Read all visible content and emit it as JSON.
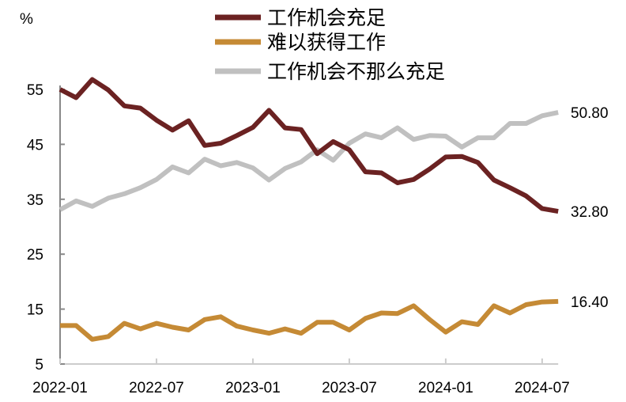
{
  "chart_data": {
    "type": "line",
    "title": "",
    "ylabel": "%",
    "xlabel": "",
    "ylim": [
      5,
      55
    ],
    "yticks": [
      "5",
      "15",
      "25",
      "35",
      "45",
      "55"
    ],
    "xticks": [
      "2022-01",
      "2022-07",
      "2023-01",
      "2023-07",
      "2024-01",
      "2024-07"
    ],
    "x_start": "2022-01",
    "x_end": "2024-08",
    "legend_position": "top-center",
    "series": [
      {
        "name": "工作机会充足",
        "color": "#6b2222",
        "end_label": "32.80",
        "values": [
          55.0,
          53.5,
          56.8,
          54.9,
          52.0,
          51.6,
          49.4,
          47.6,
          49.3,
          44.8,
          45.2,
          46.6,
          48.1,
          51.2,
          48.0,
          47.7,
          43.3,
          45.5,
          44.0,
          40.0,
          39.8,
          38.0,
          38.6,
          40.5,
          42.7,
          42.8,
          41.7,
          38.5,
          37.1,
          35.6,
          33.3,
          32.8
        ]
      },
      {
        "name": "难以获得工作",
        "color": "#c58a35",
        "end_label": "16.40",
        "values": [
          12.0,
          12.0,
          9.5,
          10.0,
          12.4,
          11.4,
          12.4,
          11.7,
          11.2,
          13.1,
          13.6,
          11.9,
          11.2,
          10.6,
          11.4,
          10.6,
          12.6,
          12.6,
          11.2,
          13.3,
          14.3,
          14.2,
          15.6,
          13.1,
          10.8,
          12.7,
          12.2,
          15.6,
          14.3,
          15.8,
          16.3,
          16.4
        ]
      },
      {
        "name": "工作机会不那么充足",
        "color": "#c0c0c0",
        "end_label": "50.80",
        "values": [
          33.1,
          34.7,
          33.7,
          35.2,
          36.0,
          37.1,
          38.6,
          40.9,
          39.8,
          42.3,
          41.1,
          41.7,
          40.7,
          38.5,
          40.6,
          41.8,
          44.0,
          42.1,
          45.2,
          46.9,
          46.2,
          48.0,
          45.9,
          46.6,
          46.5,
          44.5,
          46.2,
          46.2,
          48.8,
          48.8,
          50.2,
          50.8
        ]
      }
    ]
  }
}
